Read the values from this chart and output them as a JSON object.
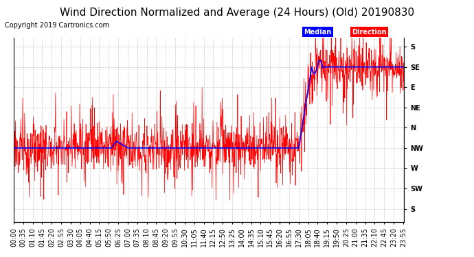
{
  "title": "Wind Direction Normalized and Average (24 Hours) (Old) 20190830",
  "copyright": "Copyright 2019 Cartronics.com",
  "background_color": "#ffffff",
  "plot_bg_color": "#ffffff",
  "grid_color": "#bbbbbb",
  "line_color_direction": "#ff0000",
  "line_color_median": "#0000ff",
  "legend_median_bg": "#0000ff",
  "legend_direction_bg": "#ff0000",
  "legend_median_text": "Median",
  "legend_direction_text": "Direction",
  "ytick_labels": [
    "S",
    "SE",
    "E",
    "NE",
    "N",
    "NW",
    "W",
    "SW",
    "S"
  ],
  "ytick_values": [
    0,
    45,
    90,
    135,
    180,
    225,
    270,
    315,
    360
  ],
  "ylim": [
    -20,
    390
  ],
  "title_fontsize": 11,
  "copyright_fontsize": 7,
  "tick_fontsize": 7,
  "xtick_step_minutes": 35
}
